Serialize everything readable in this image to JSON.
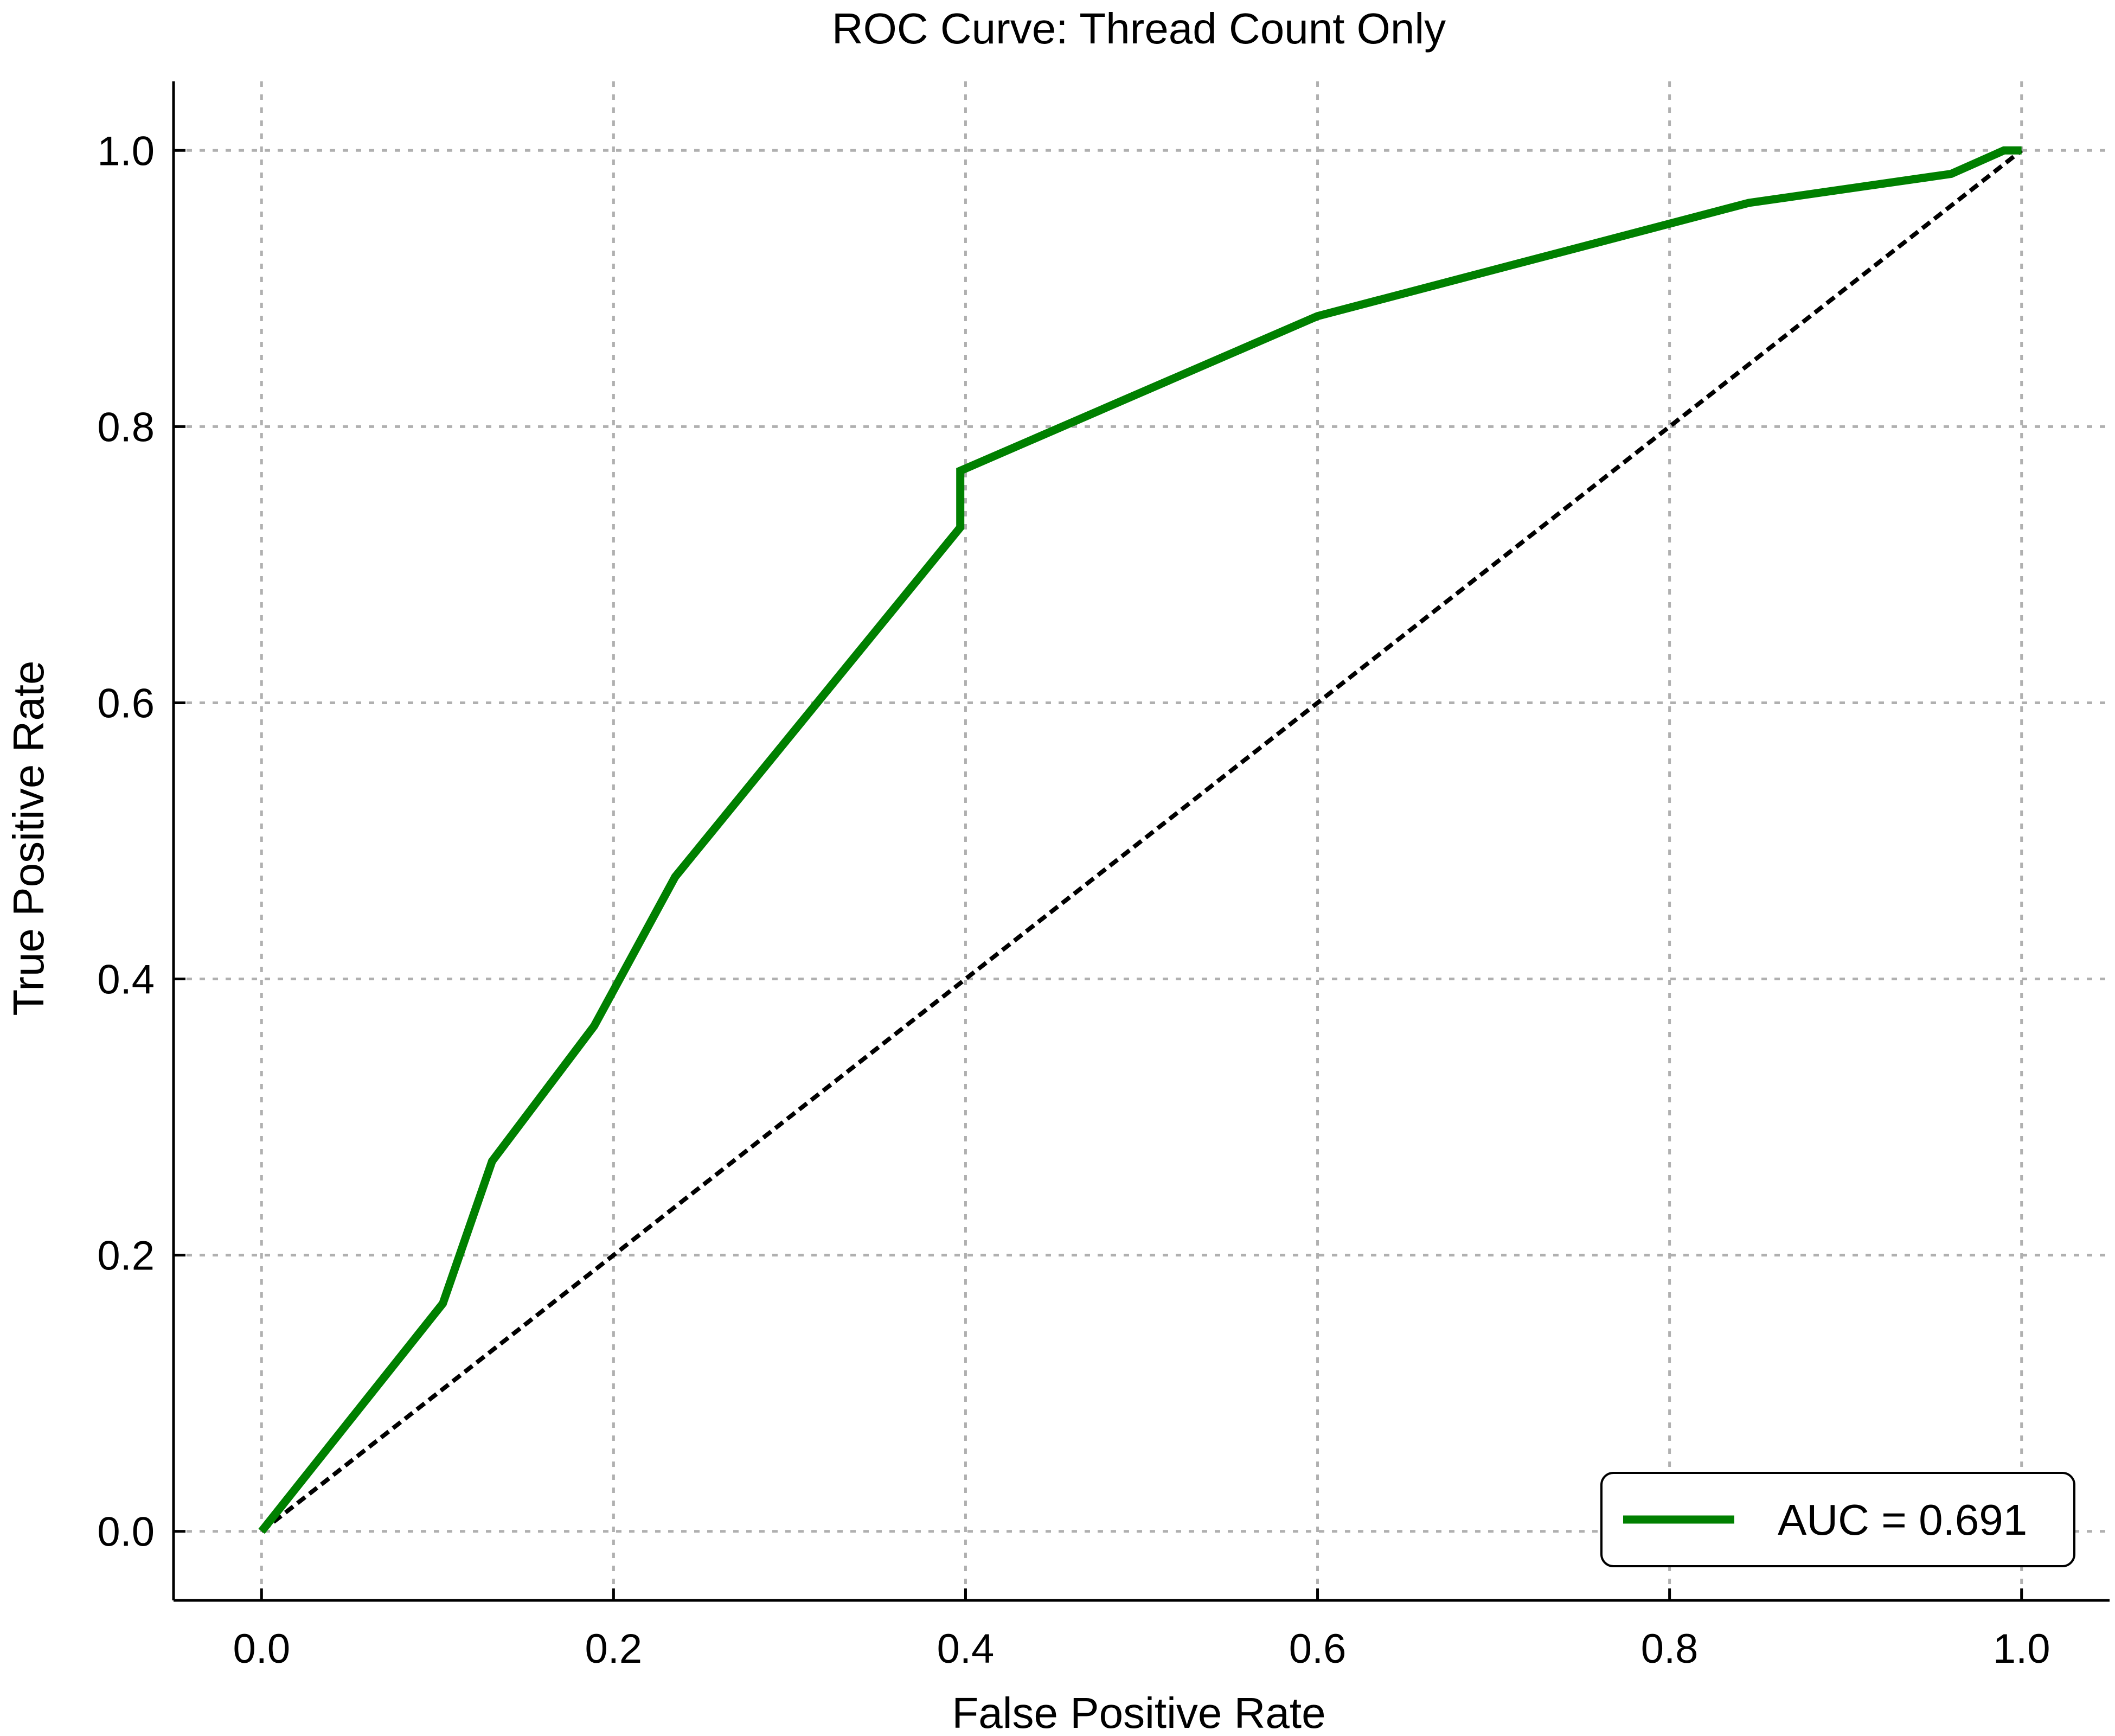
{
  "chart_data": {
    "type": "line",
    "title": "ROC Curve: Thread Count Only",
    "xlabel": "False Positive Rate",
    "ylabel": "True Positive Rate",
    "xlim": [
      -0.05,
      1.05
    ],
    "ylim": [
      -0.05,
      1.05
    ],
    "x_ticks": [
      "0.0",
      "0.2",
      "0.4",
      "0.6",
      "0.8",
      "1.0"
    ],
    "y_ticks": [
      "0.0",
      "0.2",
      "0.4",
      "0.6",
      "0.8",
      "1.0"
    ],
    "grid": true,
    "legend_position": "bottom-right",
    "series": [
      {
        "name": "AUC = 0.691",
        "color": "#008000",
        "style": "solid",
        "x": [
          0.0,
          0.103,
          0.131,
          0.189,
          0.235,
          0.397,
          0.397,
          0.6,
          0.845,
          0.96,
          0.99,
          1.0
        ],
        "y": [
          0.0,
          0.165,
          0.268,
          0.366,
          0.474,
          0.727,
          0.768,
          0.88,
          0.962,
          0.983,
          1.0,
          1.0
        ]
      },
      {
        "color": "#000000",
        "style": "dashed",
        "x": [
          0.0,
          1.0
        ],
        "y": [
          0.0,
          1.0
        ]
      }
    ]
  }
}
